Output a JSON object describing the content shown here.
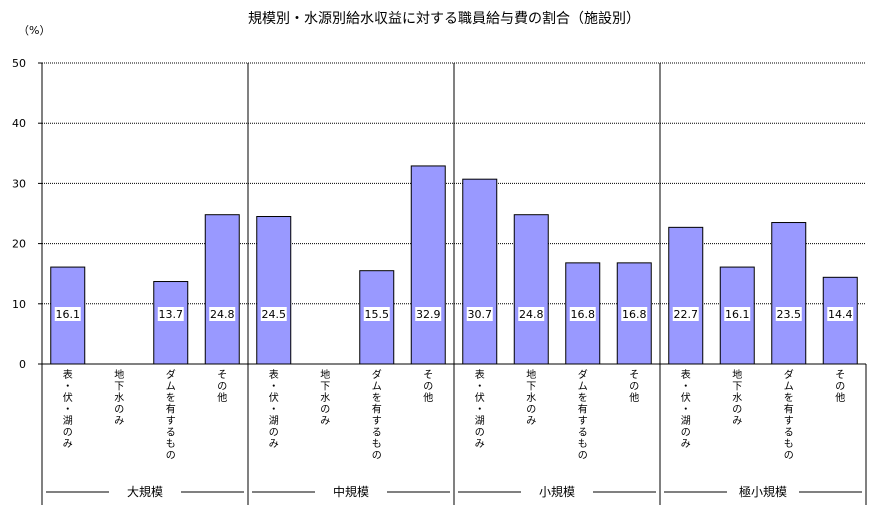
{
  "chart_data": {
    "type": "bar",
    "title": "規模別・水源別給水収益に対する職員給与費の割合（施設別）",
    "ylabel": "（%）",
    "ylim": [
      0,
      50
    ],
    "yticks": [
      0,
      10,
      20,
      30,
      40,
      50
    ],
    "grid": true,
    "bar_color": "#9999ff",
    "groups": [
      {
        "name": "大規模",
        "categories": [
          "表・伏・湖のみ",
          "地下水のみ",
          "ダムを有するもの",
          "その他"
        ],
        "values": [
          16.1,
          null,
          13.7,
          24.8
        ]
      },
      {
        "name": "中規模",
        "categories": [
          "表・伏・湖のみ",
          "地下水のみ",
          "ダムを有するもの",
          "その他"
        ],
        "values": [
          24.5,
          null,
          15.5,
          32.9
        ]
      },
      {
        "name": "小規模",
        "categories": [
          "表・伏・湖のみ",
          "地下水のみ",
          "ダムを有するもの",
          "その他"
        ],
        "values": [
          30.7,
          24.8,
          16.8,
          16.8
        ]
      },
      {
        "name": "極小規模",
        "categories": [
          "表・伏・湖のみ",
          "地下水のみ",
          "ダムを有するもの",
          "その他"
        ],
        "values": [
          22.7,
          16.1,
          23.5,
          14.4
        ]
      }
    ]
  }
}
